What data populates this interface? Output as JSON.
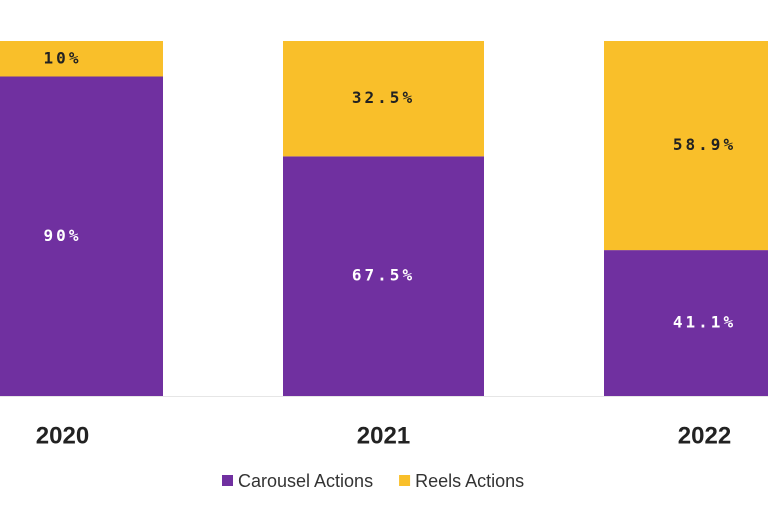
{
  "chart_data": {
    "type": "stacked_bar",
    "categories": [
      "2020",
      "2021",
      "2022"
    ],
    "series": [
      {
        "name": "Carousel Actions",
        "color": "#7030a0",
        "values": [
          90,
          67.5,
          41.1
        ],
        "value_labels": [
          "90%",
          "67.5%",
          "41.1%"
        ]
      },
      {
        "name": "Reels Actions",
        "color": "#f9bf2a",
        "values": [
          10,
          32.5,
          58.9
        ],
        "value_labels": [
          "10%",
          "32.5%",
          "58.9%"
        ]
      }
    ],
    "ylim": [
      0,
      100
    ]
  }
}
